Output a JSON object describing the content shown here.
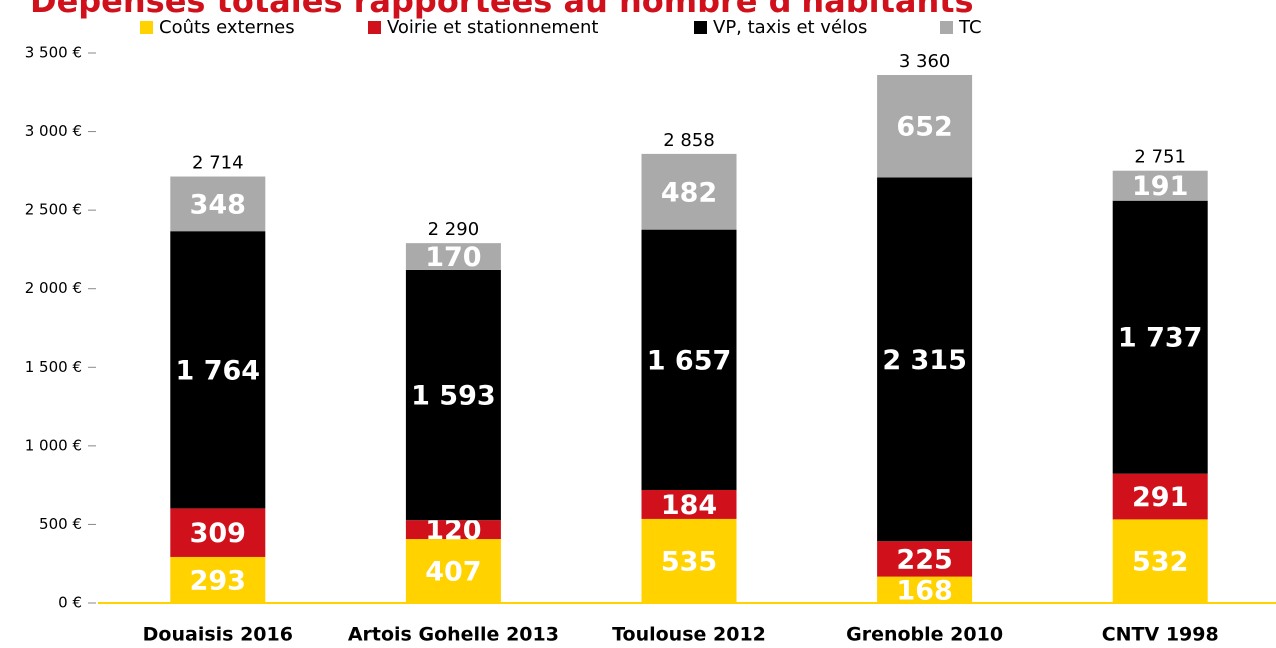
{
  "chart_data": {
    "type": "stacked-bar",
    "title": "Dépenses totales rapportées au nombre d'habitants",
    "categories": [
      "Douaisis 2016",
      "Artois Gohelle 2013",
      "Toulouse 2012",
      "Grenoble 2010",
      "CNTV 1998"
    ],
    "series": [
      {
        "name": "Coûts externes",
        "color": "#ffd200",
        "values": [
          293,
          407,
          535,
          168,
          532
        ]
      },
      {
        "name": "Voirie et stationnement",
        "color": "#d0111b",
        "values": [
          309,
          120,
          184,
          225,
          291
        ]
      },
      {
        "name": "VP, taxis et vélos",
        "color": "#000000",
        "values": [
          1764,
          1593,
          1657,
          2315,
          1737
        ],
        "value_labels": [
          "1 764",
          "1 593",
          "1 657",
          "2 315",
          "1 737"
        ]
      },
      {
        "name": "TC",
        "color": "#aaaaaa",
        "values": [
          348,
          170,
          482,
          652,
          191
        ]
      }
    ],
    "totals": [
      2714,
      2290,
      2858,
      3360,
      2751
    ],
    "total_labels": [
      "2 714",
      "2 290",
      "2 858",
      "3 360",
      "2 751"
    ],
    "ylim": [
      0,
      3500
    ],
    "yticks": [
      {
        "value": 0,
        "label": "0 €"
      },
      {
        "value": 500,
        "label": "500 €"
      },
      {
        "value": 1000,
        "label": "1 000 €"
      },
      {
        "value": 1500,
        "label": "1 500 €"
      },
      {
        "value": 2000,
        "label": "2 000 €"
      },
      {
        "value": 2500,
        "label": "2 500 €"
      },
      {
        "value": 3000,
        "label": "3 000 €"
      },
      {
        "value": 3500,
        "label": "3 500 €"
      }
    ],
    "legend": "top",
    "grid": false
  }
}
